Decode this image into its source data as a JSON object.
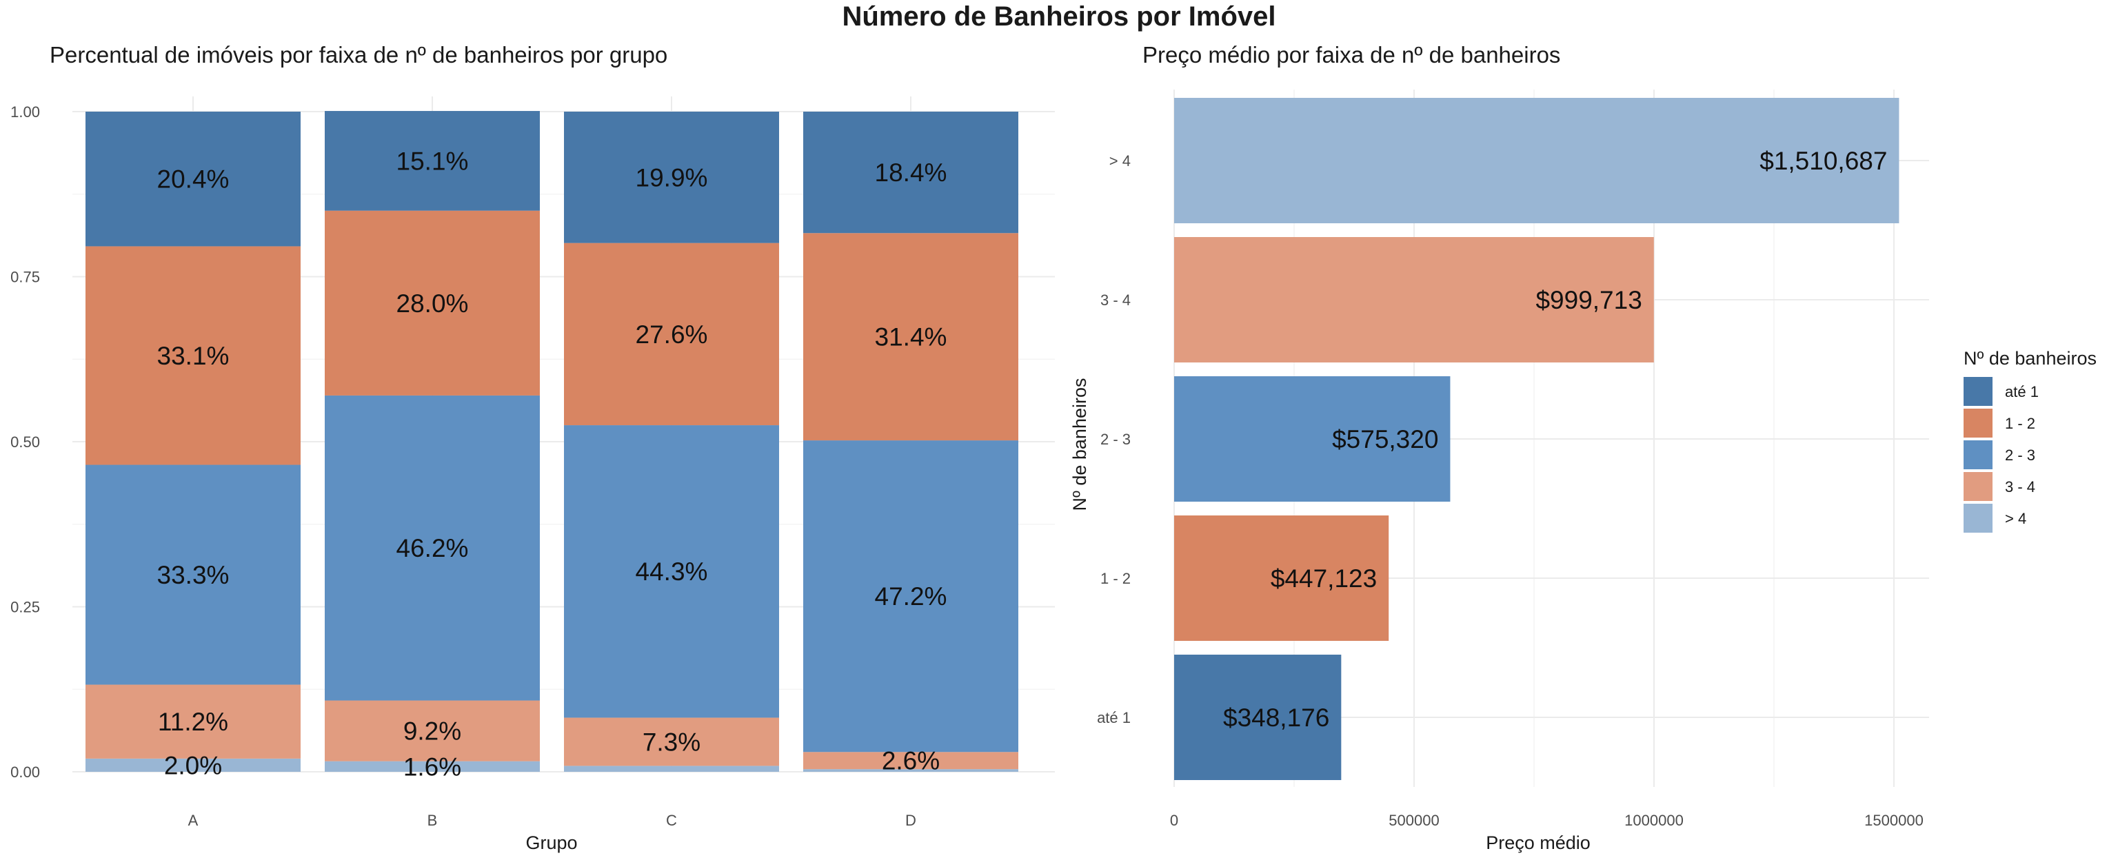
{
  "title": "Número de Banheiros por Imóvel",
  "colors": {
    "até 1": "#4878a8",
    "1 - 2": "#d88562",
    "2 - 3": "#5f90c2",
    "3 - 4": "#e19c80",
    "> 4": "#99b6d4"
  },
  "legend": {
    "title": "Nº de banheiros",
    "items": [
      "até 1",
      "1 - 2",
      "2 - 3",
      "3 - 4",
      "> 4"
    ]
  },
  "chart_data": [
    {
      "type": "bar",
      "stacked": true,
      "title": "Percentual de imóveis por faixa de nº de banheiros por grupo",
      "xlabel": "Grupo",
      "ylabel": "",
      "categories": [
        "A",
        "B",
        "C",
        "D"
      ],
      "ylim": [
        0,
        1
      ],
      "yticks": [
        "0.00",
        "0.25",
        "0.50",
        "0.75",
        "1.00"
      ],
      "series": [
        {
          "name": "até 1",
          "values": [
            0.204,
            0.151,
            0.199,
            0.184
          ],
          "labels": [
            "20.4%",
            "15.1%",
            "19.9%",
            "18.4%"
          ]
        },
        {
          "name": "1 - 2",
          "values": [
            0.331,
            0.28,
            0.276,
            0.314
          ],
          "labels": [
            "33.1%",
            "28.0%",
            "27.6%",
            "31.4%"
          ]
        },
        {
          "name": "2 - 3",
          "values": [
            0.333,
            0.462,
            0.443,
            0.472
          ],
          "labels": [
            "33.3%",
            "46.2%",
            "44.3%",
            "47.2%"
          ]
        },
        {
          "name": "3 - 4",
          "values": [
            0.112,
            0.092,
            0.073,
            0.026
          ],
          "labels": [
            "11.2%",
            "9.2%",
            "7.3%",
            "2.6%"
          ]
        },
        {
          "name": "> 4",
          "values": [
            0.02,
            0.016,
            0.009,
            0.004
          ],
          "labels": [
            "2.0%",
            "1.6%",
            "",
            ""
          ]
        }
      ],
      "grid": true,
      "legend": "right"
    },
    {
      "type": "bar",
      "orientation": "horizontal",
      "title": "Preço médio por faixa de nº de banheiros",
      "xlabel": "Preço médio",
      "ylabel": "Nº de banheiros",
      "categories": [
        "até 1",
        "1 - 2",
        "2 - 3",
        "3 - 4",
        "> 4"
      ],
      "values": [
        348176,
        447123,
        575320,
        999713,
        1510687
      ],
      "labels": [
        "$348,176",
        "$447,123",
        "$575,320",
        "$999,713",
        "$1,510,687"
      ],
      "xlim": [
        0,
        1590000
      ],
      "xticks": [
        0,
        500000,
        1000000,
        1500000
      ],
      "grid": true,
      "legend": "right"
    }
  ]
}
